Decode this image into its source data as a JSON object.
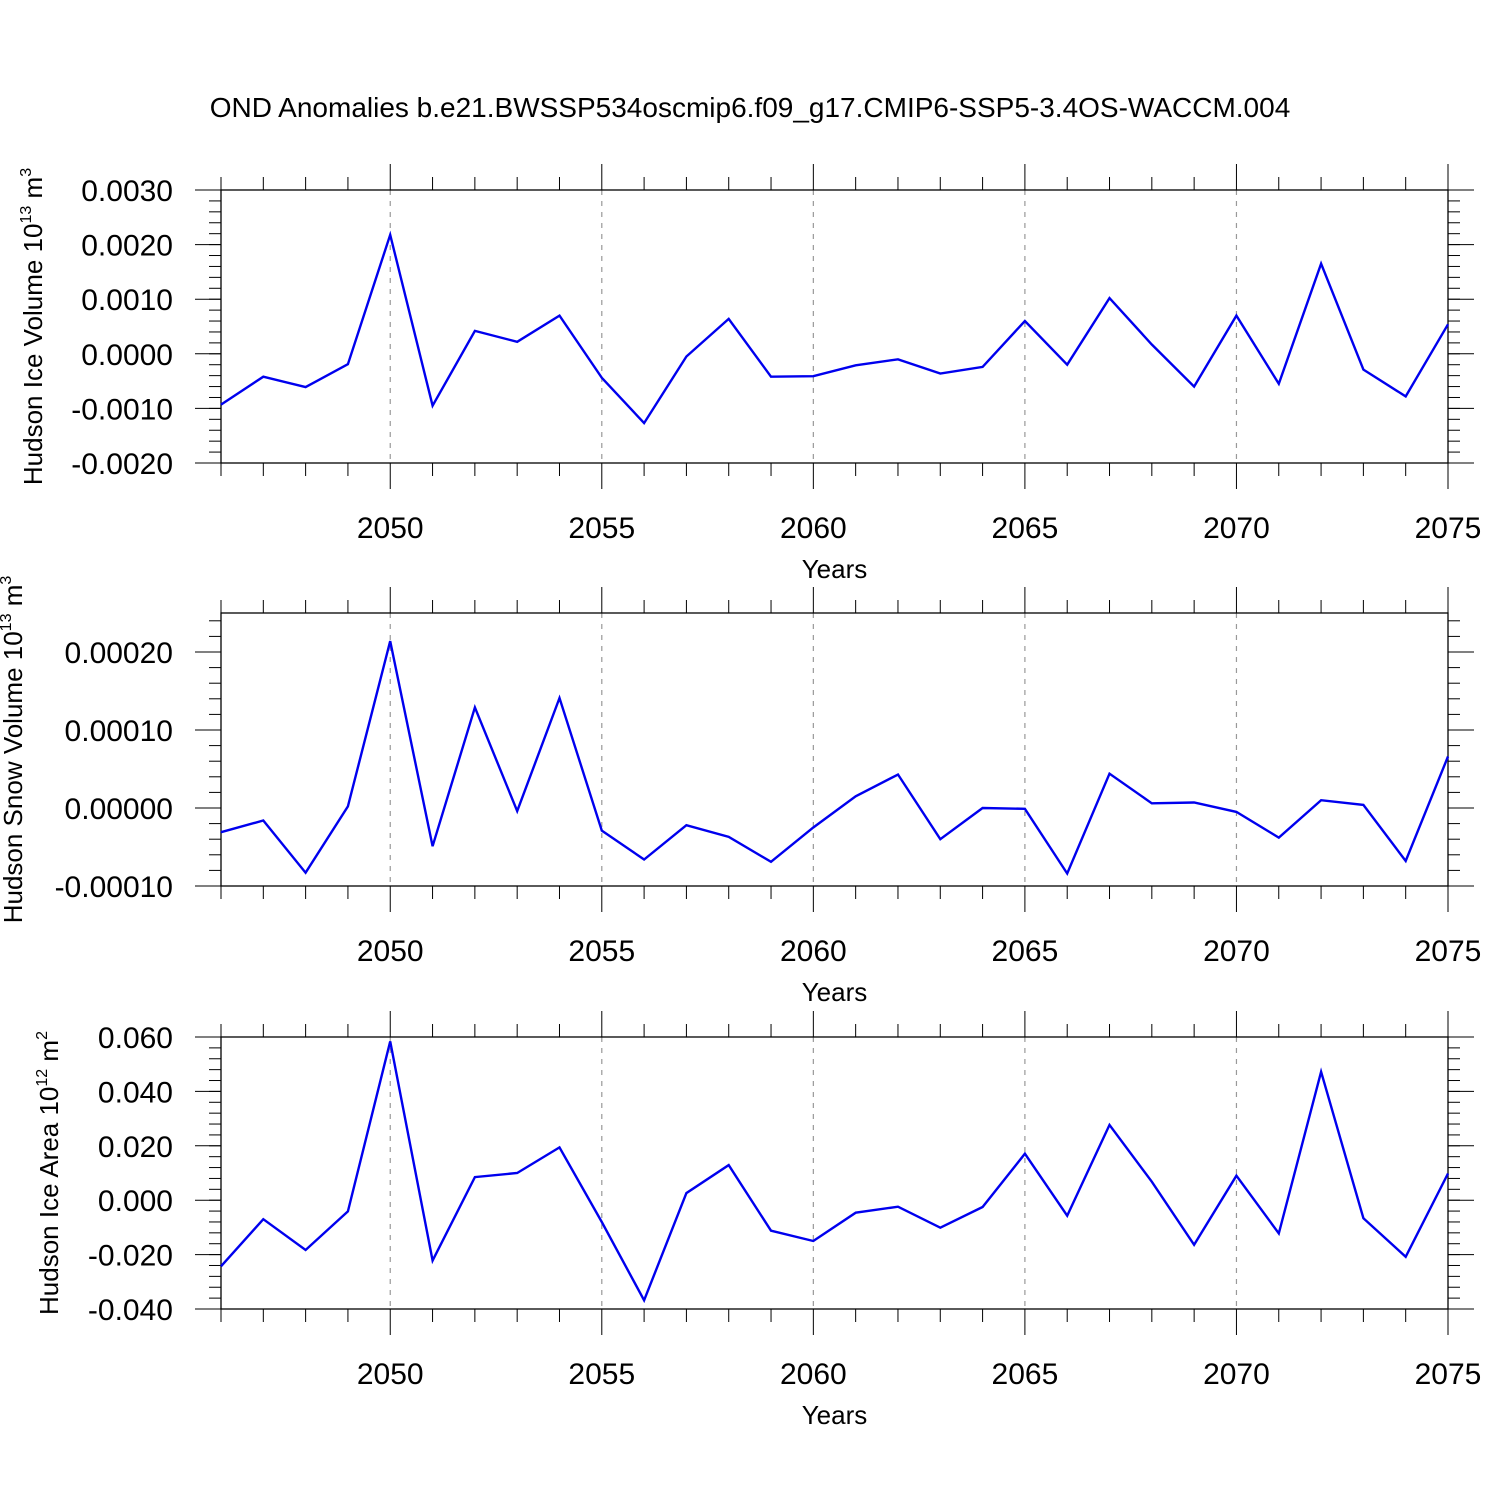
{
  "title": "OND Anomalies b.e21.BWSSP534oscmip6.f09_g17.CMIP6-SSP5-3.4OS-WACCM.004",
  "colors": {
    "line": "#0000ee",
    "axis": "#000000",
    "grid": "#999999"
  },
  "chart_data": [
    {
      "type": "line",
      "ylabel": "Hudson Ice Volume 10",
      "ylabel_exp": "13",
      "ylabel_unit": " m",
      "ylabel_unit_exp": "3",
      "xlabel": "Years",
      "xlim": [
        2046,
        2075
      ],
      "ylim": [
        -0.002,
        0.003
      ],
      "yticks": [
        -0.002,
        -0.001,
        0,
        0.001,
        0.002,
        0.003
      ],
      "ytick_labels": [
        "-0.0020",
        "-0.0010",
        "0.0000",
        "0.0010",
        "0.0020",
        "0.0030"
      ],
      "xticks": [
        2050,
        2055,
        2060,
        2065,
        2070,
        2075
      ],
      "xtick_labels": [
        "2050",
        "2055",
        "2060",
        "2065",
        "2070",
        "2075"
      ],
      "grid": "dashed vertical at major x ticks",
      "x": [
        2046,
        2047,
        2048,
        2049,
        2050,
        2051,
        2052,
        2053,
        2054,
        2055,
        2056,
        2057,
        2058,
        2059,
        2060,
        2061,
        2062,
        2063,
        2064,
        2065,
        2066,
        2067,
        2068,
        2069,
        2070,
        2071,
        2072,
        2073,
        2074,
        2075
      ],
      "series": [
        {
          "values": [
            -0.00093,
            -0.00042,
            -0.00061,
            -0.00019,
            0.00218,
            -0.00095,
            0.00042,
            0.00022,
            0.0007,
            -0.00044,
            -0.00127,
            -5e-05,
            0.00064,
            -0.00042,
            -0.00041,
            -0.00021,
            -0.0001,
            -0.00036,
            -0.00024,
            0.0006,
            -0.0002,
            0.00102,
            0.00017,
            -0.0006,
            0.0007,
            -0.00055,
            0.00165,
            -0.00029,
            -0.00078,
            0.00054
          ]
        }
      ]
    },
    {
      "type": "line",
      "ylabel": "Hudson Snow Volume 10",
      "ylabel_exp": "13",
      "ylabel_unit": " m",
      "ylabel_unit_exp": "3",
      "xlabel": "Years",
      "xlim": [
        2046,
        2075
      ],
      "ylim": [
        -0.0001,
        0.00025
      ],
      "yticks": [
        -0.0001,
        0,
        0.0001,
        0.0002
      ],
      "ytick_labels": [
        "-0.00010",
        "0.00000",
        "0.00010",
        "0.00020"
      ],
      "xticks": [
        2050,
        2055,
        2060,
        2065,
        2070,
        2075
      ],
      "xtick_labels": [
        "2050",
        "2055",
        "2060",
        "2065",
        "2070",
        "2075"
      ],
      "grid": "dashed vertical at major x ticks",
      "x": [
        2046,
        2047,
        2048,
        2049,
        2050,
        2051,
        2052,
        2053,
        2054,
        2055,
        2056,
        2057,
        2058,
        2059,
        2060,
        2061,
        2062,
        2063,
        2064,
        2065,
        2066,
        2067,
        2068,
        2069,
        2070,
        2071,
        2072,
        2073,
        2074,
        2075
      ],
      "series": [
        {
          "values": [
            -3.1e-05,
            -1.6e-05,
            -8.3e-05,
            2e-06,
            0.000214,
            -4.9e-05,
            0.000129,
            -4e-06,
            0.000141,
            -2.9e-05,
            -6.6e-05,
            -2.2e-05,
            -3.7e-05,
            -6.9e-05,
            -2.5e-05,
            1.5e-05,
            4.3e-05,
            -4e-05,
            0.0,
            -1e-06,
            -8.4e-05,
            4.4e-05,
            6e-06,
            7e-06,
            -5e-06,
            -3.8e-05,
            1e-05,
            4e-06,
            -6.8e-05,
            6.6e-05
          ]
        }
      ]
    },
    {
      "type": "line",
      "ylabel": "Hudson Ice Area 10",
      "ylabel_exp": "12",
      "ylabel_unit": " m",
      "ylabel_unit_exp": "2",
      "xlabel": "Years",
      "xlim": [
        2046,
        2075
      ],
      "ylim": [
        -0.04,
        0.06
      ],
      "yticks": [
        -0.04,
        -0.02,
        0,
        0.02,
        0.04,
        0.06
      ],
      "ytick_labels": [
        "-0.040",
        "-0.020",
        "0.000",
        "0.020",
        "0.040",
        "0.060"
      ],
      "xticks": [
        2050,
        2055,
        2060,
        2065,
        2070,
        2075
      ],
      "xtick_labels": [
        "2050",
        "2055",
        "2060",
        "2065",
        "2070",
        "2075"
      ],
      "grid": "dashed vertical at major x ticks",
      "x": [
        2046,
        2047,
        2048,
        2049,
        2050,
        2051,
        2052,
        2053,
        2054,
        2055,
        2056,
        2057,
        2058,
        2059,
        2060,
        2061,
        2062,
        2063,
        2064,
        2065,
        2066,
        2067,
        2068,
        2069,
        2070,
        2071,
        2072,
        2073,
        2074,
        2075
      ],
      "series": [
        {
          "values": [
            -0.0243,
            -0.007,
            -0.0183,
            -0.0041,
            0.0584,
            -0.0222,
            0.0085,
            0.01,
            0.0194,
            -0.008,
            -0.0368,
            0.0026,
            0.0129,
            -0.0112,
            -0.015,
            -0.0046,
            -0.0024,
            -0.0101,
            -0.0025,
            0.0171,
            -0.0057,
            0.0277,
            0.0068,
            -0.0164,
            0.009,
            -0.0122,
            0.0472,
            -0.0066,
            -0.0208,
            0.0098
          ]
        }
      ]
    }
  ]
}
